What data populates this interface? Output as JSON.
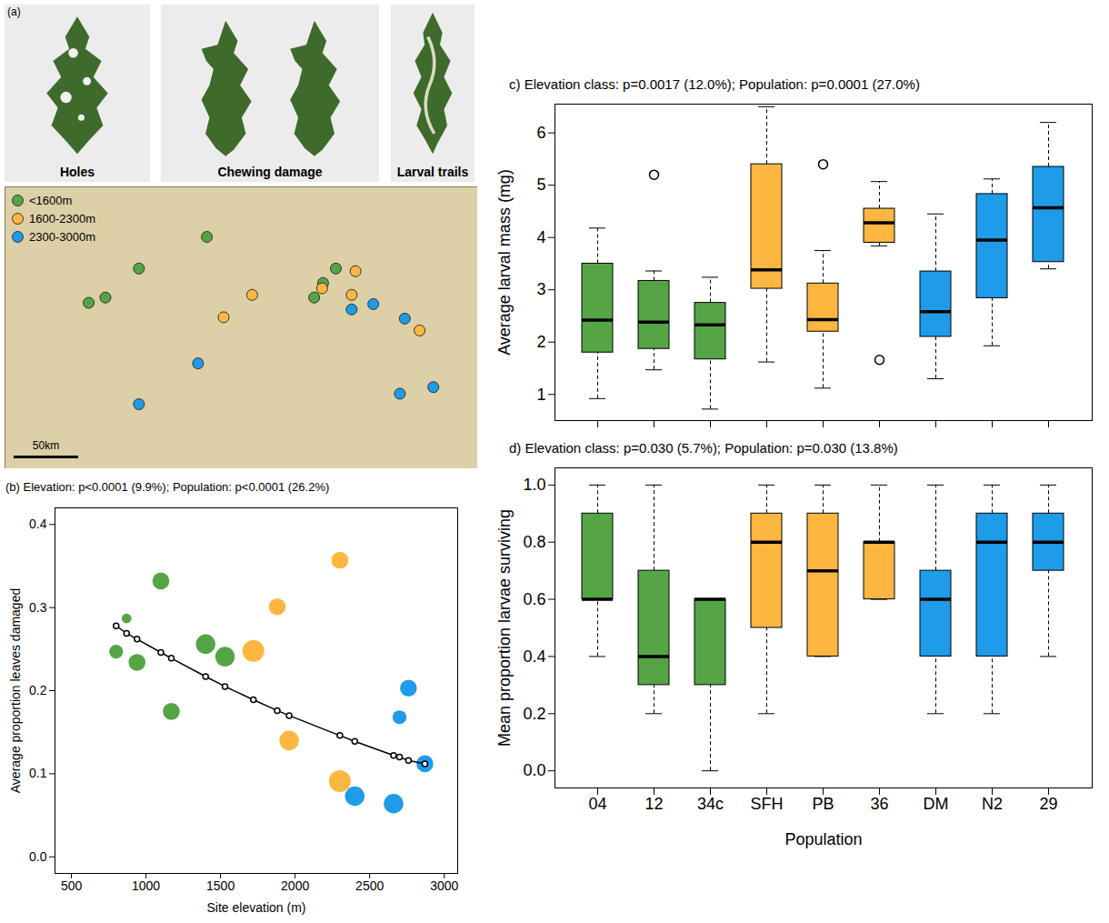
{
  "chart_data": [
    {
      "type": "images",
      "panel": "(a)",
      "captions": [
        "Holes",
        "Chewing damage",
        "Larval trails"
      ]
    },
    {
      "type": "map",
      "tick_labels": false,
      "legend": "top-left",
      "xlim": [
        5.73,
        10.53
      ],
      "ylim": [
        45.72,
        47.86
      ],
      "series": [
        {
          "name": "<1600m",
          "color": "#55a546",
          "lon": [
            7.78,
            7.09,
            6.58,
            6.75,
            9.09,
            8.87,
            8.96
          ],
          "lat": [
            47.48,
            47.24,
            46.98,
            47.02,
            47.24,
            47.02,
            47.13
          ]
        },
        {
          "name": "1600-2300m",
          "color": "#fdb740",
          "lon": [
            9.29,
            8.24,
            7.95,
            9.25,
            8.95,
            9.94
          ],
          "lat": [
            47.22,
            47.04,
            46.87,
            47.04,
            47.09,
            46.77
          ]
        },
        {
          "name": "2300-3000m",
          "color": "#1e9be9",
          "lon": [
            9.25,
            9.47,
            9.79,
            7.69,
            7.09,
            9.74,
            10.08
          ],
          "lat": [
            46.93,
            46.97,
            46.86,
            46.52,
            46.21,
            46.29,
            46.34
          ]
        }
      ],
      "scale_bar": {
        "label": "50km",
        "km": 50
      }
    },
    {
      "type": "scatter",
      "title": "(b) Elevation: p<0.0001 (9.9%); Population: p<0.0001 (26.2%)",
      "x_label": "Site elevation (m)",
      "y_label": "Average proportion leaves damaged",
      "xlim": [
        390,
        3090
      ],
      "ylim": [
        -0.02,
        0.42
      ],
      "xticks": [
        500,
        1000,
        1500,
        2000,
        2500,
        3000
      ],
      "yticks": [
        {
          "value": 0,
          "label": "0.0"
        },
        {
          "value": 0.1,
          "label": "0.1"
        },
        {
          "value": 0.2,
          "label": "0.2"
        },
        {
          "value": 0.3,
          "label": "0.3"
        },
        {
          "value": 0.4,
          "label": "0.4"
        }
      ],
      "series": [
        {
          "type": "scatter",
          "x": [
            800,
            870,
            940,
            1100,
            1170,
            1400,
            1530,
            1720,
            1880,
            1960,
            2300,
            2300,
            2400,
            2660,
            2700,
            2760,
            2870
          ],
          "values": [
            0.247,
            0.287,
            0.234,
            0.332,
            0.175,
            0.256,
            0.241,
            0.248,
            0.301,
            0.14,
            0.357,
            0.091,
            0.073,
            0.064,
            0.168,
            0.203,
            0.112
          ],
          "sizes": [
            2,
            1,
            3,
            3,
            3,
            4,
            4,
            5,
            3,
            4,
            3,
            5,
            4,
            4,
            2,
            3,
            3
          ],
          "colors": [
            "#55a546",
            "#55a546",
            "#55a546",
            "#55a546",
            "#55a546",
            "#55a546",
            "#55a546",
            "#fdb740",
            "#fdb740",
            "#fdb740",
            "#fdb740",
            "#fdb740",
            "#1e9be9",
            "#1e9be9",
            "#1e9be9",
            "#1e9be9",
            "#1e9be9"
          ]
        },
        {
          "type": "line",
          "marker": "open_circle",
          "color": "#000000",
          "x": [
            800,
            870,
            940,
            1100,
            1170,
            1400,
            1530,
            1720,
            1880,
            1960,
            2300,
            2400,
            2660,
            2700,
            2760,
            2870
          ],
          "values": [
            0.278,
            0.269,
            0.262,
            0.246,
            0.239,
            0.217,
            0.205,
            0.189,
            0.176,
            0.17,
            0.146,
            0.139,
            0.122,
            0.12,
            0.116,
            0.112
          ]
        }
      ]
    },
    {
      "type": "box",
      "title": "c) Elevation class: p=0.0017 (12.0%); Population: p=0.0001 (27.0%)",
      "y_label": "Average larval mass (mg)",
      "tick_labels": "y",
      "categories": [
        "04",
        "12",
        "34c",
        "SFH",
        "PB",
        "36",
        "DM",
        "N2",
        "29"
      ],
      "colors": [
        "#55a546",
        "#55a546",
        "#55a546",
        "#fdb740",
        "#fdb740",
        "#fdb740",
        "#1e9be9",
        "#1e9be9",
        "#1e9be9"
      ],
      "ylim": [
        0.5,
        6.55
      ],
      "yticks": [
        1,
        2,
        3,
        4,
        5,
        6
      ],
      "boxes": [
        {
          "whisker_low": 0.92,
          "q1": 1.8,
          "median": 2.42,
          "q3": 3.5,
          "whisker_high": 4.18,
          "outliers": []
        },
        {
          "whisker_low": 1.47,
          "q1": 1.87,
          "median": 2.38,
          "q3": 3.17,
          "whisker_high": 3.36,
          "outliers": [
            5.2
          ]
        },
        {
          "whisker_low": 0.72,
          "q1": 1.67,
          "median": 2.33,
          "q3": 2.75,
          "whisker_high": 3.24,
          "outliers": []
        },
        {
          "whisker_low": 1.62,
          "q1": 3.02,
          "median": 3.38,
          "q3": 5.4,
          "whisker_high": 6.5,
          "outliers": []
        },
        {
          "whisker_low": 1.12,
          "q1": 2.2,
          "median": 2.43,
          "q3": 3.12,
          "whisker_high": 3.75,
          "outliers": [
            5.4
          ]
        },
        {
          "whisker_low": 3.84,
          "q1": 3.9,
          "median": 4.28,
          "q3": 4.55,
          "whisker_high": 5.07,
          "outliers": [
            1.66
          ]
        },
        {
          "whisker_low": 1.3,
          "q1": 2.1,
          "median": 2.58,
          "q3": 3.35,
          "whisker_high": 4.45,
          "outliers": []
        },
        {
          "whisker_low": 1.93,
          "q1": 2.84,
          "median": 3.95,
          "q3": 4.83,
          "whisker_high": 5.12,
          "outliers": []
        },
        {
          "whisker_low": 3.4,
          "q1": 3.53,
          "median": 4.57,
          "q3": 5.35,
          "whisker_high": 6.2,
          "outliers": []
        }
      ]
    },
    {
      "type": "box",
      "title": "d) Elevation class: p=0.030 (5.7%); Population: p=0.030 (13.8%)",
      "x_label": "Population",
      "y_label": "Mean proportion larvae surviving",
      "categories": [
        "04",
        "12",
        "34c",
        "SFH",
        "PB",
        "36",
        "DM",
        "N2",
        "29"
      ],
      "colors": [
        "#55a546",
        "#55a546",
        "#55a546",
        "#fdb740",
        "#fdb740",
        "#fdb740",
        "#1e9be9",
        "#1e9be9",
        "#1e9be9"
      ],
      "ylim": [
        -0.06,
        1.06
      ],
      "yticks": [
        {
          "value": 0,
          "label": "0.0"
        },
        {
          "value": 0.2,
          "label": "0.2"
        },
        {
          "value": 0.4,
          "label": "0.4"
        },
        {
          "value": 0.6,
          "label": "0.6"
        },
        {
          "value": 0.8,
          "label": "0.8"
        },
        {
          "value": 1,
          "label": "1.0"
        }
      ],
      "boxes": [
        {
          "whisker_low": 0.4,
          "q1": 0.6,
          "median": 0.6,
          "q3": 0.9,
          "whisker_high": 1.0,
          "outliers": []
        },
        {
          "whisker_low": 0.2,
          "q1": 0.3,
          "median": 0.4,
          "q3": 0.7,
          "whisker_high": 1.0,
          "outliers": []
        },
        {
          "whisker_low": 0.0,
          "q1": 0.3,
          "median": 0.6,
          "q3": 0.6,
          "whisker_high": 0.6,
          "outliers": []
        },
        {
          "whisker_low": 0.2,
          "q1": 0.5,
          "median": 0.8,
          "q3": 0.9,
          "whisker_high": 1.0,
          "outliers": []
        },
        {
          "whisker_low": 0.4,
          "q1": 0.4,
          "median": 0.7,
          "q3": 0.9,
          "whisker_high": 1.0,
          "outliers": []
        },
        {
          "whisker_low": 0.6,
          "q1": 0.6,
          "median": 0.8,
          "q3": 0.8,
          "whisker_high": 1.0,
          "outliers": []
        },
        {
          "whisker_low": 0.2,
          "q1": 0.4,
          "median": 0.6,
          "q3": 0.7,
          "whisker_high": 1.0,
          "outliers": []
        },
        {
          "whisker_low": 0.2,
          "q1": 0.4,
          "median": 0.8,
          "q3": 0.9,
          "whisker_high": 1.0,
          "outliers": []
        },
        {
          "whisker_low": 0.4,
          "q1": 0.7,
          "median": 0.8,
          "q3": 0.9,
          "whisker_high": 1.0,
          "outliers": []
        }
      ]
    }
  ]
}
